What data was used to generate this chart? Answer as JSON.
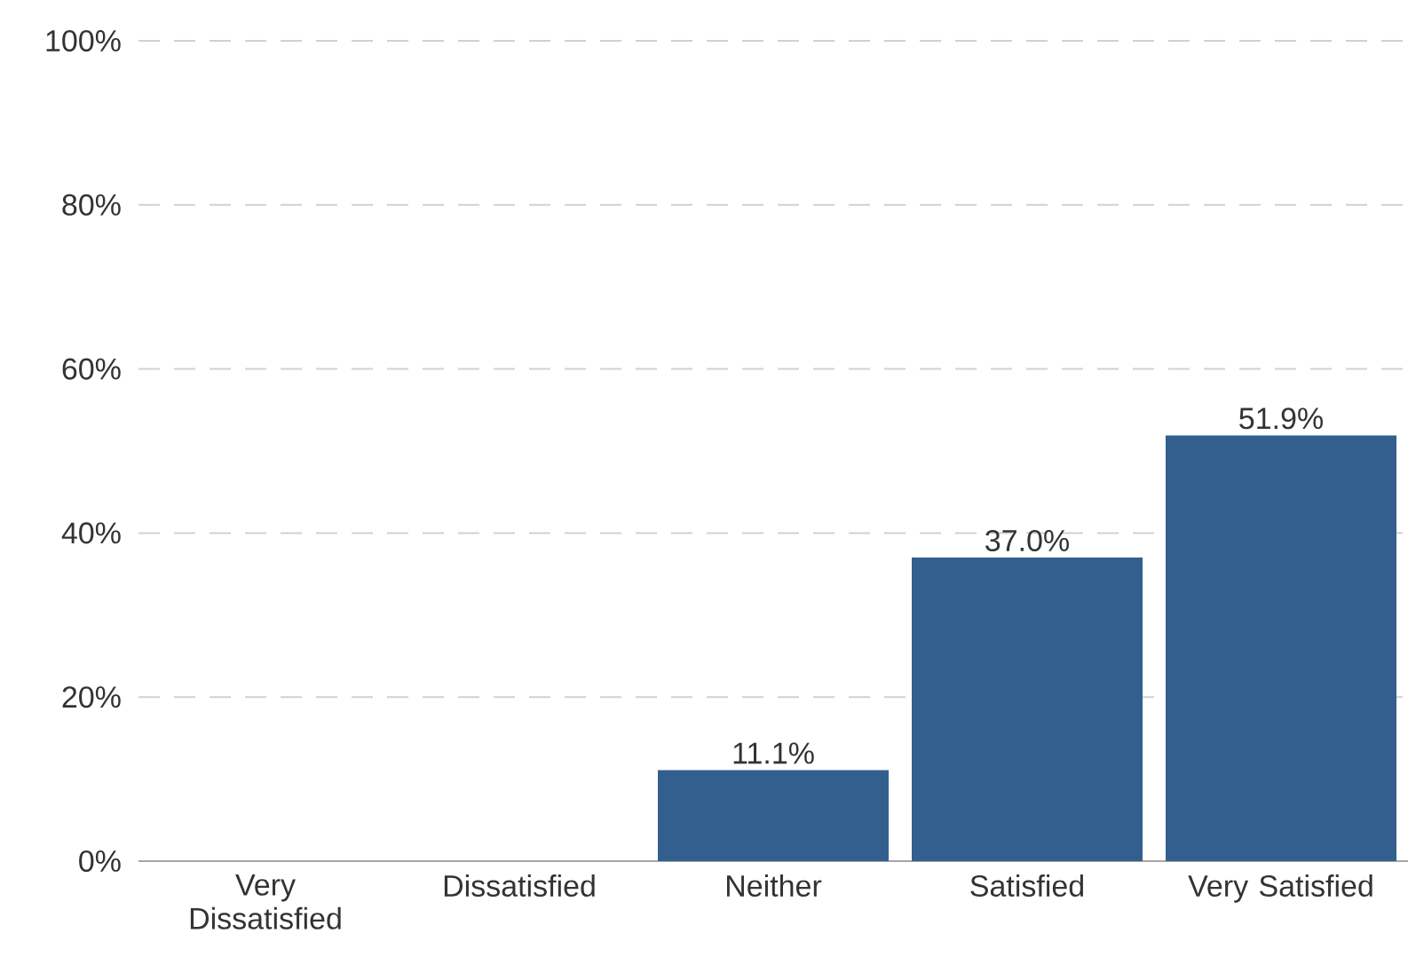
{
  "chart_data": {
    "type": "bar",
    "categories": [
      "Very Dissatisfied",
      "Dissatisfied",
      "Neither",
      "Satisfied",
      "Very Satisfied"
    ],
    "values": [
      0,
      0,
      11.1,
      37.0,
      51.9
    ],
    "value_labels": [
      null,
      null,
      "11.1%",
      "37.0%",
      "51.9%"
    ],
    "color": "#335f8f",
    "ylim": [
      0,
      100
    ],
    "yticks": [
      {
        "value": 0,
        "label": "0%"
      },
      {
        "value": 20,
        "label": "20%"
      },
      {
        "value": 40,
        "label": "40%"
      },
      {
        "value": 60,
        "label": "60%"
      },
      {
        "value": 80,
        "label": "80%"
      },
      {
        "value": 100,
        "label": "100%"
      }
    ],
    "grid": "y"
  }
}
